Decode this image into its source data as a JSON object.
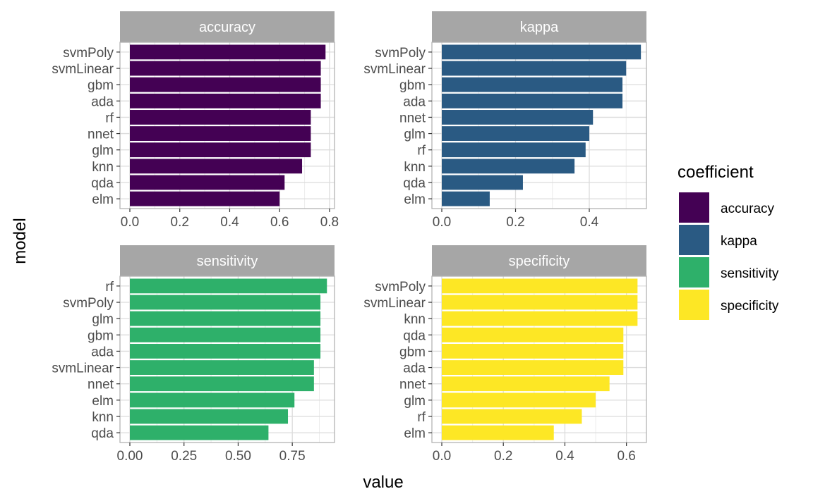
{
  "chart_data": {
    "type": "bar",
    "orientation": "horizontal",
    "xlabel": "value",
    "ylabel": "model",
    "grid": true,
    "legend": {
      "title": "coefficient",
      "placement": "right",
      "entries": [
        {
          "label": "accuracy",
          "color": "#440154"
        },
        {
          "label": "kappa",
          "color": "#2a5a83"
        },
        {
          "label": "sensitivity",
          "color": "#2eb06a"
        },
        {
          "label": "specificity",
          "color": "#fde725"
        }
      ]
    },
    "panels": [
      {
        "name": "accuracy",
        "color": "#440154",
        "xlim": [
          0,
          0.82
        ],
        "ticks": [
          0,
          0.2,
          0.4,
          0.6,
          0.8
        ],
        "tick_labels": [
          "0.0",
          "0.2",
          "0.4",
          "0.6",
          "0.8"
        ],
        "categories": [
          "svmPoly",
          "svmLinear",
          "gbm",
          "ada",
          "rf",
          "nnet",
          "glm",
          "knn",
          "qda",
          "elm"
        ],
        "values": [
          0.784,
          0.765,
          0.765,
          0.765,
          0.725,
          0.725,
          0.725,
          0.69,
          0.62,
          0.6
        ]
      },
      {
        "name": "kappa",
        "color": "#2a5a83",
        "xlim": [
          0,
          0.555
        ],
        "ticks": [
          0,
          0.2,
          0.4
        ],
        "tick_labels": [
          "0.0",
          "0.2",
          "0.4"
        ],
        "categories": [
          "svmPoly",
          "svmLinear",
          "gbm",
          "ada",
          "nnet",
          "glm",
          "rf",
          "knn",
          "qda",
          "elm"
        ],
        "values": [
          0.54,
          0.5,
          0.49,
          0.49,
          0.41,
          0.4,
          0.39,
          0.36,
          0.22,
          0.13
        ]
      },
      {
        "name": "sensitivity",
        "color": "#2eb06a",
        "xlim": [
          0,
          0.945
        ],
        "ticks": [
          0,
          0.25,
          0.5,
          0.75
        ],
        "tick_labels": [
          "0.00",
          "0.25",
          "0.50",
          "0.75"
        ],
        "categories": [
          "rf",
          "svmPoly",
          "glm",
          "gbm",
          "ada",
          "svmLinear",
          "nnet",
          "elm",
          "knn",
          "qda"
        ],
        "values": [
          0.91,
          0.88,
          0.88,
          0.88,
          0.88,
          0.85,
          0.85,
          0.76,
          0.73,
          0.64
        ]
      },
      {
        "name": "specificity",
        "color": "#fde725",
        "xlim": [
          0,
          0.665
        ],
        "ticks": [
          0,
          0.2,
          0.4,
          0.6
        ],
        "tick_labels": [
          "0.0",
          "0.2",
          "0.4",
          "0.6"
        ],
        "categories": [
          "svmPoly",
          "svmLinear",
          "knn",
          "qda",
          "gbm",
          "ada",
          "nnet",
          "glm",
          "rf",
          "elm"
        ],
        "values": [
          0.636,
          0.636,
          0.636,
          0.59,
          0.59,
          0.59,
          0.545,
          0.5,
          0.455,
          0.364
        ]
      }
    ]
  }
}
